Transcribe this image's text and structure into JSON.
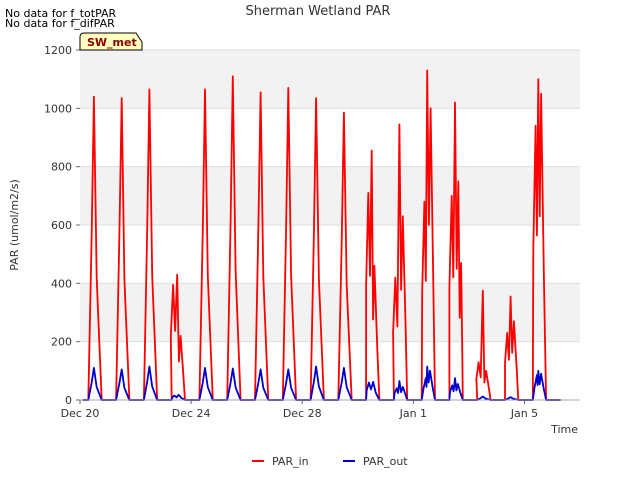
{
  "notes": [
    "No data for f_totPAR",
    "No data for f_difPAR"
  ],
  "badge": "SW_met",
  "chart_data": {
    "type": "line",
    "title": "Sherman Wetland PAR",
    "xlabel": "Time",
    "ylabel": "PAR (umol/m2/s)",
    "ylim": [
      0,
      1200
    ],
    "xlim": [
      0,
      18
    ],
    "yticks": [
      0,
      200,
      400,
      600,
      800,
      1000,
      1200
    ],
    "xticks": [
      {
        "label": "Dec 20",
        "day": 0
      },
      {
        "label": "Dec 24",
        "day": 4
      },
      {
        "label": "Dec 28",
        "day": 8
      },
      {
        "label": "Jan 1",
        "day": 12
      },
      {
        "label": "Jan 5",
        "day": 16
      }
    ],
    "grid": true,
    "legend": "bottom",
    "series": [
      {
        "name": "PAR_in",
        "color": "#ff0000",
        "days": [
          {
            "day": 0,
            "peaks": [
              [
                0.5,
                1040
              ]
            ]
          },
          {
            "day": 1,
            "peaks": [
              [
                0.5,
                1035
              ]
            ]
          },
          {
            "day": 2,
            "peaks": [
              [
                0.5,
                1065
              ]
            ]
          },
          {
            "day": 3,
            "peaks": [
              [
                0.35,
                395
              ],
              [
                0.5,
                430
              ],
              [
                0.62,
                220
              ]
            ]
          },
          {
            "day": 4,
            "peaks": [
              [
                0.5,
                1065
              ]
            ]
          },
          {
            "day": 5,
            "peaks": [
              [
                0.5,
                1110
              ]
            ]
          },
          {
            "day": 6,
            "peaks": [
              [
                0.5,
                1055
              ]
            ]
          },
          {
            "day": 7,
            "peaks": [
              [
                0.5,
                1070
              ]
            ]
          },
          {
            "day": 8,
            "peaks": [
              [
                0.5,
                1035
              ]
            ]
          },
          {
            "day": 9,
            "peaks": [
              [
                0.5,
                985
              ]
            ]
          },
          {
            "day": 10,
            "peaks": [
              [
                0.38,
                710
              ],
              [
                0.5,
                855
              ],
              [
                0.6,
                460
              ]
            ]
          },
          {
            "day": 11,
            "peaks": [
              [
                0.35,
                420
              ],
              [
                0.5,
                945
              ],
              [
                0.62,
                630
              ]
            ]
          },
          {
            "day": 12,
            "peaks": [
              [
                0.4,
                680
              ],
              [
                0.5,
                1130
              ],
              [
                0.62,
                1000
              ]
            ]
          },
          {
            "day": 13,
            "peaks": [
              [
                0.38,
                700
              ],
              [
                0.5,
                1020
              ],
              [
                0.62,
                750
              ],
              [
                0.72,
                470
              ]
            ]
          },
          {
            "day": 14,
            "peaks": [
              [
                0.35,
                130
              ],
              [
                0.5,
                375
              ],
              [
                0.62,
                100
              ]
            ]
          },
          {
            "day": 15,
            "peaks": [
              [
                0.38,
                230
              ],
              [
                0.5,
                355
              ],
              [
                0.62,
                270
              ]
            ]
          },
          {
            "day": 16,
            "peaks": [
              [
                0.4,
                940
              ],
              [
                0.5,
                1100
              ],
              [
                0.6,
                1050
              ]
            ]
          }
        ]
      },
      {
        "name": "PAR_out",
        "color": "#0000cc",
        "days": [
          {
            "day": 0,
            "peaks": [
              [
                0.5,
                110
              ]
            ]
          },
          {
            "day": 1,
            "peaks": [
              [
                0.5,
                105
              ]
            ]
          },
          {
            "day": 2,
            "peaks": [
              [
                0.5,
                115
              ]
            ]
          },
          {
            "day": 3,
            "peaks": [
              [
                0.4,
                15
              ],
              [
                0.55,
                18
              ]
            ]
          },
          {
            "day": 4,
            "peaks": [
              [
                0.5,
                110
              ]
            ]
          },
          {
            "day": 5,
            "peaks": [
              [
                0.5,
                108
              ]
            ]
          },
          {
            "day": 6,
            "peaks": [
              [
                0.5,
                105
              ]
            ]
          },
          {
            "day": 7,
            "peaks": [
              [
                0.5,
                105
              ]
            ]
          },
          {
            "day": 8,
            "peaks": [
              [
                0.5,
                115
              ]
            ]
          },
          {
            "day": 9,
            "peaks": [
              [
                0.5,
                110
              ]
            ]
          },
          {
            "day": 10,
            "peaks": [
              [
                0.4,
                60
              ],
              [
                0.55,
                62
              ]
            ]
          },
          {
            "day": 11,
            "peaks": [
              [
                0.4,
                40
              ],
              [
                0.5,
                65
              ],
              [
                0.62,
                45
              ]
            ]
          },
          {
            "day": 12,
            "peaks": [
              [
                0.45,
                75
              ],
              [
                0.5,
                115
              ],
              [
                0.6,
                100
              ]
            ]
          },
          {
            "day": 13,
            "peaks": [
              [
                0.4,
                50
              ],
              [
                0.5,
                75
              ],
              [
                0.6,
                55
              ]
            ]
          },
          {
            "day": 14,
            "peaks": [
              [
                0.5,
                12
              ]
            ]
          },
          {
            "day": 15,
            "peaks": [
              [
                0.5,
                10
              ]
            ]
          },
          {
            "day": 16,
            "peaks": [
              [
                0.45,
                85
              ],
              [
                0.5,
                100
              ],
              [
                0.6,
                90
              ]
            ]
          }
        ]
      }
    ]
  }
}
